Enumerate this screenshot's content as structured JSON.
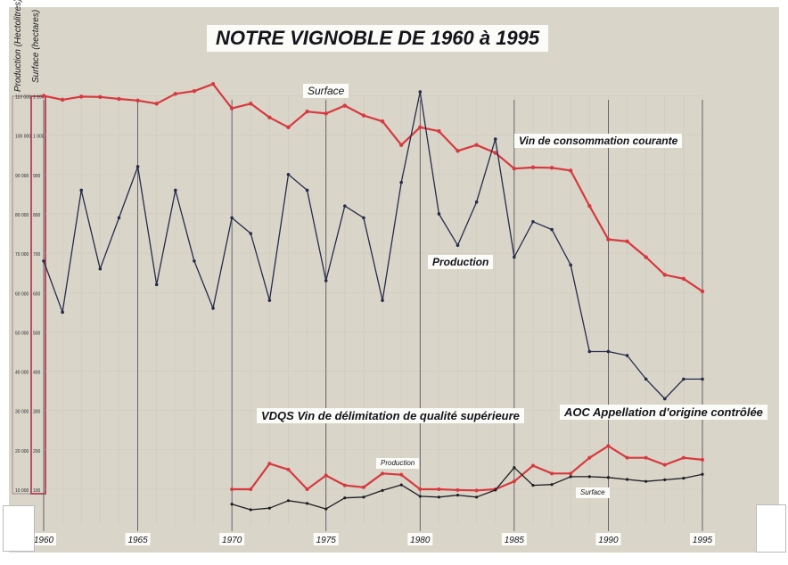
{
  "title": "NOTRE VIGNOBLE  DE 1960 à 1995",
  "axis_titles": {
    "production": "Production (Hectolitres)",
    "surface": "Surface (hectares)"
  },
  "series_labels": {
    "surface": "Surface",
    "vin_consommation": "Vin de consommation courante",
    "production": "Production",
    "vdqs": "VDQS  Vin de délimitation de qualité supérieure",
    "aoc": "AOC   Appellation d'origine contrôlée",
    "small_production": "Production",
    "small_surface": "Surface"
  },
  "colors": {
    "surface": "#d8393f",
    "production": "#262c4c",
    "vdqs_surface": "#d8393f",
    "vdqs_production": "#1e1e24",
    "board": "#d9d5c9",
    "axis_bar": "#b85060"
  },
  "chart_data": {
    "type": "line",
    "title": "NOTRE VIGNOBLE  DE 1960 à 1995",
    "x_ticks": [
      "1960",
      "1965",
      "1970",
      "1975",
      "1980",
      "1985",
      "1990",
      "1995"
    ],
    "x_range": [
      1960,
      1995
    ],
    "y_axes": [
      {
        "label": "Production (Hectolitres)",
        "ticks": [
          "10 000",
          "20 000",
          "30 000",
          "40 000",
          "50 000",
          "60 000",
          "70 000",
          "80 000",
          "90 000",
          "100 000",
          "110 000"
        ],
        "range": [
          10000,
          110000
        ]
      },
      {
        "label": "Surface (hectares)",
        "ticks": [
          "100",
          "200",
          "300",
          "400",
          "500",
          "600",
          "700",
          "800",
          "900",
          "1 000",
          "1 100"
        ],
        "range": [
          100,
          1100
        ]
      }
    ],
    "series": [
      {
        "name": "Surface",
        "axis": "surface",
        "x": [
          1960,
          1961,
          1962,
          1963,
          1964,
          1965,
          1966,
          1967,
          1968,
          1969,
          1970,
          1971,
          1972,
          1973,
          1974,
          1975,
          1976,
          1977,
          1978,
          1979,
          1980,
          1981,
          1982,
          1983,
          1984,
          1985,
          1986,
          1987,
          1988,
          1989,
          1990,
          1991,
          1992,
          1993,
          1994,
          1995
        ],
        "values": [
          1100,
          1090,
          1098,
          1097,
          1092,
          1088,
          1080,
          1105,
          1112,
          1130,
          1068,
          1080,
          1045,
          1020,
          1060,
          1055,
          1075,
          1050,
          1035,
          975,
          1020,
          1010,
          960,
          975,
          955,
          915,
          918,
          917,
          910,
          820,
          735,
          730,
          690,
          645,
          635,
          603
        ]
      },
      {
        "name": "Production",
        "axis": "production",
        "x": [
          1960,
          1961,
          1962,
          1963,
          1964,
          1965,
          1966,
          1967,
          1968,
          1969,
          1970,
          1971,
          1972,
          1973,
          1974,
          1975,
          1976,
          1977,
          1978,
          1979,
          1980,
          1981,
          1982,
          1983,
          1984,
          1985,
          1986,
          1987,
          1988,
          1989,
          1990,
          1991,
          1992,
          1993,
          1994,
          1995
        ],
        "values": [
          68000,
          55000,
          86000,
          66000,
          79000,
          92000,
          62000,
          86000,
          68000,
          56000,
          79000,
          75000,
          58000,
          90000,
          86000,
          63000,
          82000,
          79000,
          58000,
          88000,
          111000,
          80000,
          72000,
          83000,
          99000,
          69000,
          78000,
          76000,
          67000,
          45000,
          45000,
          44000,
          38000,
          33000,
          38000,
          38000
        ]
      },
      {
        "name": "AOC Surface",
        "axis": "surface",
        "x": [
          1970,
          1971,
          1972,
          1973,
          1974,
          1975,
          1976,
          1977,
          1978,
          1979,
          1980,
          1981,
          1982,
          1983,
          1984,
          1985,
          1986,
          1987,
          1988,
          1989,
          1990,
          1991,
          1992,
          1993,
          1994,
          1995
        ],
        "values": [
          100,
          100,
          165,
          150,
          100,
          135,
          110,
          105,
          140,
          137,
          100,
          100,
          98,
          97,
          100,
          120,
          160,
          140,
          140,
          180,
          210,
          180,
          180,
          162,
          180,
          175
        ]
      },
      {
        "name": "AOC Production",
        "axis": "surface",
        "x": [
          1970,
          1971,
          1972,
          1973,
          1974,
          1975,
          1976,
          1977,
          1978,
          1979,
          1980,
          1981,
          1982,
          1983,
          1984,
          1985,
          1986,
          1987,
          1988,
          1989,
          1990,
          1991,
          1992,
          1993,
          1994,
          1995
        ],
        "values": [
          62,
          48,
          52,
          71,
          64,
          50,
          78,
          80,
          97,
          111,
          82,
          80,
          85,
          80,
          98,
          155,
          110,
          112,
          132,
          132,
          130,
          125,
          120,
          124,
          128,
          138
        ]
      }
    ],
    "grid": true,
    "legend": "inline labels"
  }
}
